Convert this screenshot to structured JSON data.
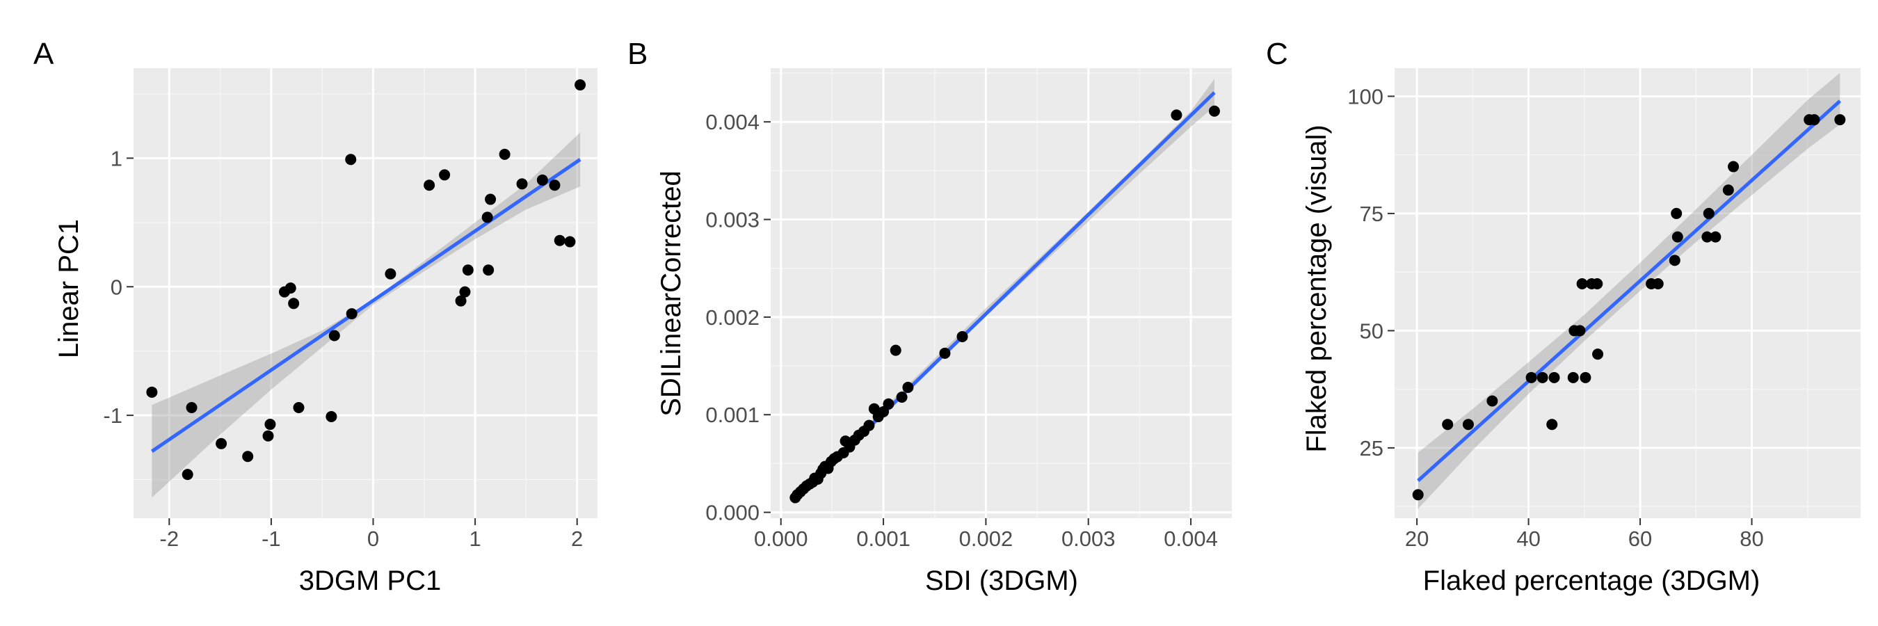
{
  "colors": {
    "panel_background": "#EBEBEB",
    "grid_major": "#FFFFFF",
    "grid_minor": "#F5F5F5",
    "point": "#000000",
    "fit_line": "#3366FF",
    "confidence_band": "#999999",
    "tick": "#333333"
  },
  "chart_data": [
    {
      "type": "scatter",
      "panel_label": "A",
      "title": "",
      "xlabel": "3DGM PC1",
      "ylabel": "Linear PC1",
      "xlim": [
        -2.35,
        2.2
      ],
      "ylim": [
        -1.8,
        1.7
      ],
      "xticks": [
        -2,
        -1,
        0,
        1,
        2
      ],
      "xtick_labels": [
        "-2",
        "-1",
        "0",
        "1",
        "2"
      ],
      "yticks": [
        -1,
        0,
        1
      ],
      "ytick_labels": [
        "-1",
        "0",
        "1"
      ],
      "grid": true,
      "legend": "none",
      "points": [
        [
          -2.17,
          -0.82
        ],
        [
          -1.78,
          -0.94
        ],
        [
          -1.82,
          -1.46
        ],
        [
          -1.49,
          -1.22
        ],
        [
          -1.23,
          -1.32
        ],
        [
          -1.03,
          -1.16
        ],
        [
          -1.01,
          -1.07
        ],
        [
          -0.87,
          -0.04
        ],
        [
          -0.81,
          -0.01
        ],
        [
          -0.78,
          -0.13
        ],
        [
          -0.73,
          -0.94
        ],
        [
          -0.41,
          -1.01
        ],
        [
          -0.38,
          -0.38
        ],
        [
          -0.22,
          0.99
        ],
        [
          -0.21,
          -0.21
        ],
        [
          0.17,
          0.1
        ],
        [
          0.55,
          0.79
        ],
        [
          0.7,
          0.87
        ],
        [
          0.86,
          -0.11
        ],
        [
          0.9,
          -0.04
        ],
        [
          0.93,
          0.13
        ],
        [
          1.12,
          0.54
        ],
        [
          1.13,
          0.13
        ],
        [
          1.15,
          0.68
        ],
        [
          1.29,
          1.03
        ],
        [
          1.46,
          0.8
        ],
        [
          1.66,
          0.83
        ],
        [
          1.78,
          0.79
        ],
        [
          1.83,
          0.36
        ],
        [
          1.93,
          0.35
        ],
        [
          2.03,
          1.57
        ]
      ],
      "fit_line": {
        "x": [
          -2.17,
          2.03
        ],
        "y": [
          -1.28,
          0.99
        ]
      },
      "confidence_band": {
        "x": [
          -2.17,
          -1.5,
          -1.0,
          -0.5,
          0.0,
          0.5,
          1.0,
          1.5,
          2.03
        ],
        "lower": [
          -1.64,
          -1.15,
          -0.8,
          -0.47,
          -0.14,
          0.12,
          0.37,
          0.6,
          0.78
        ],
        "upper": [
          -0.92,
          -0.69,
          -0.52,
          -0.34,
          -0.1,
          0.2,
          0.5,
          0.8,
          1.2
        ]
      }
    },
    {
      "type": "scatter",
      "panel_label": "B",
      "title": "",
      "xlabel": "SDI (3DGM)",
      "ylabel": "SDILinearCorrected",
      "xlim": [
        -0.0001,
        0.0044
      ],
      "ylim": [
        -6e-05,
        0.00455
      ],
      "xticks": [
        0,
        0.001,
        0.002,
        0.003,
        0.004
      ],
      "xtick_labels": [
        "0.000",
        "0.001",
        "0.002",
        "0.003",
        "0.004"
      ],
      "yticks": [
        0,
        0.001,
        0.002,
        0.003,
        0.004
      ],
      "ytick_labels": [
        "0.000",
        "0.001",
        "0.002",
        "0.003",
        "0.004"
      ],
      "grid": true,
      "legend": "none",
      "points": [
        [
          0.00014,
          0.00015
        ],
        [
          0.00016,
          0.00018
        ],
        [
          0.00019,
          0.00021
        ],
        [
          0.00022,
          0.00024
        ],
        [
          0.00025,
          0.00027
        ],
        [
          0.00028,
          0.00029
        ],
        [
          0.00031,
          0.00031
        ],
        [
          0.00033,
          0.00035
        ],
        [
          0.00036,
          0.00034
        ],
        [
          0.00039,
          0.0004
        ],
        [
          0.00041,
          0.00044
        ],
        [
          0.00043,
          0.00047
        ],
        [
          0.00046,
          0.00045
        ],
        [
          0.00049,
          0.00052
        ],
        [
          0.00052,
          0.00055
        ],
        [
          0.00055,
          0.00057
        ],
        [
          0.00061,
          0.00061
        ],
        [
          0.00063,
          0.00073
        ],
        [
          0.00067,
          0.00067
        ],
        [
          0.00072,
          0.00074
        ],
        [
          0.00076,
          0.00079
        ],
        [
          0.00081,
          0.00083
        ],
        [
          0.00086,
          0.00089
        ],
        [
          0.00091,
          0.00106
        ],
        [
          0.00095,
          0.00098
        ],
        [
          0.001,
          0.00103
        ],
        [
          0.00105,
          0.00111
        ],
        [
          0.00112,
          0.00166
        ],
        [
          0.00118,
          0.00118
        ],
        [
          0.00124,
          0.00128
        ],
        [
          0.0016,
          0.00163
        ],
        [
          0.00177,
          0.0018
        ],
        [
          0.00386,
          0.00407
        ],
        [
          0.00423,
          0.00411
        ]
      ],
      "fit_line": {
        "x": [
          0.00012,
          0.00423
        ],
        "y": [
          0.00012,
          0.0043
        ]
      },
      "confidence_band": {
        "x": [
          0.00012,
          0.001,
          0.002,
          0.003,
          0.0035,
          0.004,
          0.00423
        ],
        "lower": [
          8e-05,
          0.00098,
          0.00201,
          0.00298,
          0.00347,
          0.00395,
          0.00416
        ],
        "upper": [
          0.00016,
          0.00106,
          0.00209,
          0.00308,
          0.00359,
          0.00411,
          0.00444
        ]
      }
    },
    {
      "type": "scatter",
      "panel_label": "C",
      "title": "",
      "xlabel": "Flaked percentage (3DGM)",
      "ylabel": "Flaked percentage  (visual)",
      "xlim": [
        16.0,
        99.5
      ],
      "ylim": [
        10.0,
        106.0
      ],
      "xticks": [
        20,
        40,
        60,
        80
      ],
      "xtick_labels": [
        "20",
        "40",
        "60",
        "80"
      ],
      "yticks": [
        25,
        50,
        75,
        100
      ],
      "ytick_labels": [
        "25",
        "50",
        "75",
        "100"
      ],
      "grid": true,
      "legend": "none",
      "points": [
        [
          20.2,
          15
        ],
        [
          25.5,
          30
        ],
        [
          29.2,
          30
        ],
        [
          33.5,
          35
        ],
        [
          40.5,
          40
        ],
        [
          42.5,
          40
        ],
        [
          44.2,
          30
        ],
        [
          44.6,
          40
        ],
        [
          48.0,
          40
        ],
        [
          48.2,
          50
        ],
        [
          49.2,
          50
        ],
        [
          49.6,
          60
        ],
        [
          50.2,
          40
        ],
        [
          51.3,
          60
        ],
        [
          52.3,
          60
        ],
        [
          52.4,
          45
        ],
        [
          62.0,
          60
        ],
        [
          63.2,
          60
        ],
        [
          66.2,
          65
        ],
        [
          66.5,
          75
        ],
        [
          66.7,
          70
        ],
        [
          72.0,
          70
        ],
        [
          72.3,
          75
        ],
        [
          73.5,
          70
        ],
        [
          75.8,
          80
        ],
        [
          76.7,
          85
        ],
        [
          90.3,
          95
        ],
        [
          91.2,
          95
        ],
        [
          95.8,
          95
        ]
      ],
      "fit_line": {
        "x": [
          20.2,
          95.8
        ],
        "y": [
          18.0,
          99.0
        ]
      },
      "confidence_band": {
        "x": [
          20.2,
          30,
          40,
          50,
          60,
          70,
          80,
          90,
          95.8
        ],
        "lower": [
          12.0,
          24.5,
          36.5,
          47.8,
          58.5,
          68.9,
          78.9,
          88.8,
          94.0
        ],
        "upper": [
          24.0,
          33.3,
          43.3,
          53.4,
          64.5,
          75.9,
          87.5,
          99.2,
          105.0
        ]
      }
    }
  ]
}
